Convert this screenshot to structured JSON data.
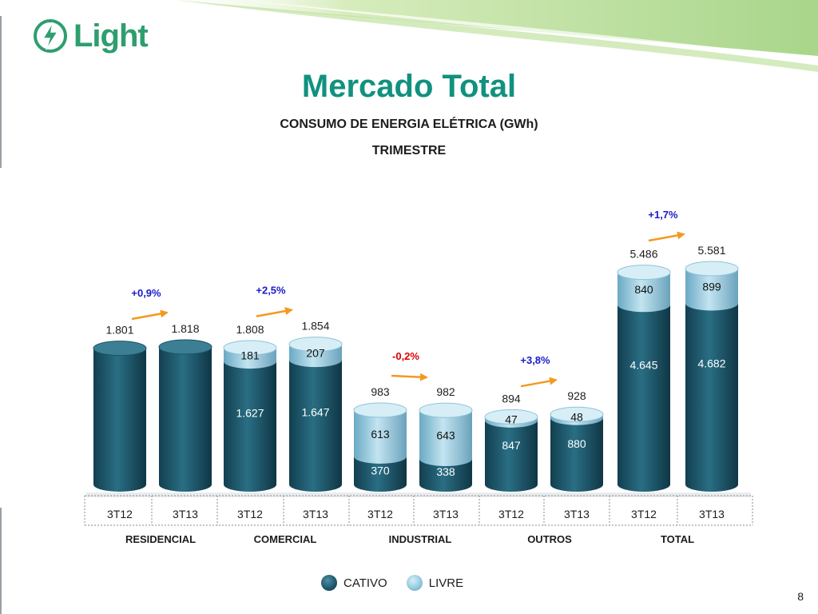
{
  "header": {
    "logo_text": "Light",
    "title": "Mercado Total",
    "subtitle": "CONSUMO DE ENERGIA ELÉTRICA (GWh)",
    "period": "TRIMESTRE"
  },
  "chart_data": {
    "type": "bar",
    "stacked": true,
    "title": "CONSUMO DE ENERGIA ELÉTRICA (GWh)",
    "subtitle": "TRIMESTRE",
    "unit": "GWh",
    "series": [
      {
        "name": "CATIVO",
        "color": "#1b5569"
      },
      {
        "name": "LIVRE",
        "color": "#9dd0e4"
      }
    ],
    "groups": [
      {
        "name": "RESIDENCIAL",
        "growth": "+0,9%",
        "bars": [
          {
            "period": "3T12",
            "total": 1801,
            "total_label": "1.801",
            "cativo": 1801,
            "livre": 0,
            "cativo_label": "",
            "livre_label": ""
          },
          {
            "period": "3T13",
            "total": 1818,
            "total_label": "1.818",
            "cativo": 1818,
            "livre": 0,
            "cativo_label": "",
            "livre_label": ""
          }
        ]
      },
      {
        "name": "COMERCIAL",
        "growth": "+2,5%",
        "bars": [
          {
            "period": "3T12",
            "total": 1808,
            "total_label": "1.808",
            "cativo": 1627,
            "livre": 181,
            "cativo_label": "1.627",
            "livre_label": "181"
          },
          {
            "period": "3T13",
            "total": 1854,
            "total_label": "1.854",
            "cativo": 1647,
            "livre": 207,
            "cativo_label": "1.647",
            "livre_label": "207"
          }
        ]
      },
      {
        "name": "INDUSTRIAL",
        "growth": "-0,2%",
        "bars": [
          {
            "period": "3T12",
            "total": 983,
            "total_label": "983",
            "cativo": 370,
            "livre": 613,
            "cativo_label": "370",
            "livre_label": "613"
          },
          {
            "period": "3T13",
            "total": 982,
            "total_label": "982",
            "cativo": 338,
            "livre": 643,
            "cativo_label": "338",
            "livre_label": "643"
          }
        ]
      },
      {
        "name": "OUTROS",
        "growth": "+3,8%",
        "bars": [
          {
            "period": "3T12",
            "total": 894,
            "total_label": "894",
            "cativo": 847,
            "livre": 47,
            "cativo_label": "847",
            "livre_label": "47"
          },
          {
            "period": "3T13",
            "total": 928,
            "total_label": "928",
            "cativo": 880,
            "livre": 48,
            "cativo_label": "880",
            "livre_label": "48"
          }
        ]
      },
      {
        "name": "TOTAL",
        "growth": "+1,7%",
        "bars": [
          {
            "period": "3T12",
            "total": 5486,
            "total_label": "5.486",
            "cativo": 4645,
            "livre": 840,
            "cativo_label": "4.645",
            "livre_label": "840"
          },
          {
            "period": "3T13",
            "total": 5581,
            "total_label": "5.581",
            "cativo": 4682,
            "livre": 899,
            "cativo_label": "4.682",
            "livre_label": "899"
          }
        ]
      }
    ]
  },
  "legend": {
    "cativo": "CATIVO",
    "livre": "LIVRE"
  },
  "colors": {
    "title": "#11917f",
    "cativo": "#1b5569",
    "livre": "#9dd0e4",
    "growth_positive": "#1a1acc",
    "growth_negative": "#d90000",
    "arrow": "#f39a1e"
  },
  "footer": {
    "page_number": "8"
  }
}
